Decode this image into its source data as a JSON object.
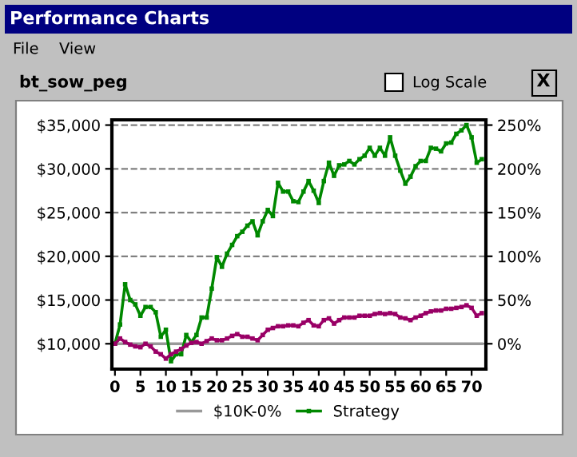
{
  "chart_data": {
    "type": "line",
    "title": "bt_sow_peg",
    "annotations": [
      "Performance Charts",
      "File",
      "View",
      "Log Scale",
      "X"
    ],
    "x": [
      0,
      1,
      2,
      3,
      4,
      5,
      6,
      7,
      8,
      9,
      10,
      11,
      12,
      13,
      14,
      15,
      16,
      17,
      18,
      19,
      20,
      21,
      22,
      23,
      24,
      25,
      26,
      27,
      28,
      29,
      30,
      31,
      32,
      33,
      34,
      35,
      36,
      37,
      38,
      39,
      40,
      41,
      42,
      43,
      44,
      45,
      46,
      47,
      48,
      49,
      50,
      51,
      52,
      53,
      54,
      55,
      56,
      57,
      58,
      59,
      60,
      61,
      62,
      63,
      64,
      65,
      66,
      67,
      68,
      69,
      70,
      71,
      72
    ],
    "series": [
      {
        "name": "$10K-0%",
        "color": "#999999",
        "marker": "none",
        "values": [
          10000,
          10000,
          10000,
          10000,
          10000,
          10000,
          10000,
          10000,
          10000,
          10000,
          10000,
          10000,
          10000,
          10000,
          10000,
          10000,
          10000,
          10000,
          10000,
          10000,
          10000,
          10000,
          10000,
          10000,
          10000,
          10000,
          10000,
          10000,
          10000,
          10000,
          10000,
          10000,
          10000,
          10000,
          10000,
          10000,
          10000,
          10000,
          10000,
          10000,
          10000,
          10000,
          10000,
          10000,
          10000,
          10000,
          10000,
          10000,
          10000,
          10000,
          10000,
          10000,
          10000,
          10000,
          10000,
          10000,
          10000,
          10000,
          10000,
          10000,
          10000,
          10000,
          10000,
          10000,
          10000,
          10000,
          10000,
          10000,
          10000,
          10000,
          10000,
          10000,
          10000
        ]
      },
      {
        "name": "Strategy",
        "color": "#008800",
        "marker": "square",
        "values": [
          10000,
          12200,
          16800,
          15000,
          14500,
          13200,
          14200,
          14200,
          13600,
          10800,
          11600,
          8000,
          8800,
          8800,
          11000,
          10200,
          11000,
          13000,
          13000,
          16300,
          19900,
          18800,
          20300,
          21300,
          22300,
          22800,
          23500,
          24000,
          22400,
          24000,
          25300,
          24600,
          28400,
          27400,
          27400,
          26300,
          26200,
          27400,
          28600,
          27500,
          26100,
          28600,
          30700,
          29200,
          30400,
          30500,
          30900,
          30500,
          31100,
          31500,
          32400,
          31500,
          32400,
          31500,
          33600,
          31500,
          29800,
          28300,
          29100,
          30300,
          30900,
          30900,
          32400,
          32300,
          32000,
          32900,
          33000,
          34000,
          34400,
          35000,
          33600,
          30700,
          31100
        ]
      },
      {
        "color": "#990066",
        "marker": "square",
        "values": [
          10000,
          10600,
          10200,
          9900,
          9700,
          9600,
          10000,
          9700,
          9100,
          8800,
          8300,
          8800,
          9100,
          9400,
          9800,
          10100,
          10200,
          10000,
          10300,
          10600,
          10400,
          10400,
          10600,
          10900,
          11100,
          10800,
          10800,
          10600,
          10400,
          11000,
          11600,
          11800,
          12000,
          12000,
          12100,
          12100,
          12000,
          12400,
          12700,
          12100,
          12000,
          12700,
          12900,
          12300,
          12700,
          13000,
          13000,
          13000,
          13200,
          13200,
          13200,
          13400,
          13500,
          13400,
          13500,
          13400,
          13000,
          12900,
          12700,
          13000,
          13200,
          13500,
          13700,
          13800,
          13800,
          14000,
          14000,
          14100,
          14200,
          14400,
          14100,
          13200,
          13500
        ]
      }
    ],
    "xlim": [
      -0.6,
      72.8
    ],
    "xticks": [
      0,
      5,
      10,
      15,
      20,
      25,
      30,
      35,
      40,
      45,
      50,
      55,
      60,
      65,
      70
    ],
    "ylim": [
      7100,
      35600
    ],
    "yticks": [
      {
        "value": 10000,
        "label": "$10,000"
      },
      {
        "value": 15000,
        "label": "$15,000"
      },
      {
        "value": 20000,
        "label": "$20,000"
      },
      {
        "value": 25000,
        "label": "$25,000"
      },
      {
        "value": 30000,
        "label": "$30,000"
      },
      {
        "value": 35000,
        "label": "$35,000"
      }
    ],
    "y2lim": [
      -29,
      256
    ],
    "y2ticks": [
      {
        "value": 0,
        "label": "0%"
      },
      {
        "value": 50,
        "label": "50%"
      },
      {
        "value": 100,
        "label": "100%"
      },
      {
        "value": 150,
        "label": "150%"
      },
      {
        "value": 200,
        "label": "200%"
      },
      {
        "value": 250,
        "label": "250%"
      }
    ],
    "grid": "y",
    "legend": "bottom",
    "line_style": "solid"
  }
}
